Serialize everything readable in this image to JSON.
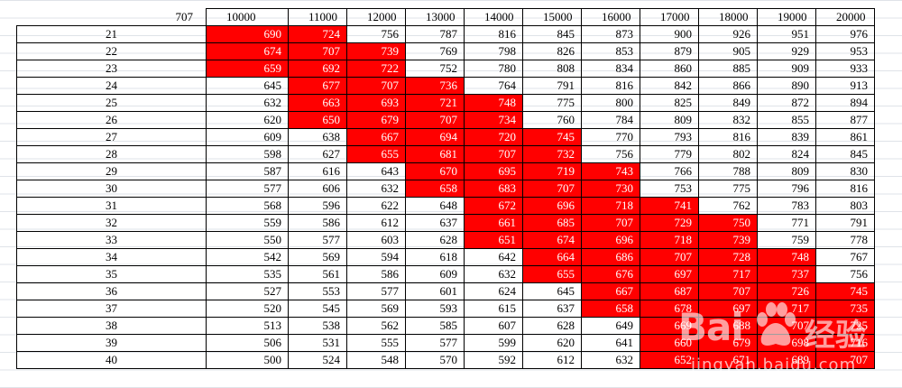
{
  "table": {
    "corner": "707",
    "columns": [
      "10000",
      "11000",
      "12000",
      "13000",
      "14000",
      "15000",
      "16000",
      "17000",
      "18000",
      "19000",
      "20000"
    ],
    "highlight_color": "#ff0000",
    "rows": [
      {
        "label": "21",
        "values": [
          "690",
          "724",
          "756",
          "787",
          "816",
          "845",
          "873",
          "900",
          "926",
          "951",
          "976"
        ],
        "highlighted": [
          0,
          1
        ]
      },
      {
        "label": "22",
        "values": [
          "674",
          "707",
          "739",
          "769",
          "798",
          "826",
          "853",
          "879",
          "905",
          "929",
          "953"
        ],
        "highlighted": [
          0,
          1,
          2
        ]
      },
      {
        "label": "23",
        "values": [
          "659",
          "692",
          "722",
          "752",
          "780",
          "808",
          "834",
          "860",
          "885",
          "909",
          "933"
        ],
        "highlighted": [
          0,
          1,
          2
        ]
      },
      {
        "label": "24",
        "values": [
          "645",
          "677",
          "707",
          "736",
          "764",
          "791",
          "816",
          "842",
          "866",
          "890",
          "913"
        ],
        "highlighted": [
          1,
          2,
          3
        ]
      },
      {
        "label": "25",
        "values": [
          "632",
          "663",
          "693",
          "721",
          "748",
          "775",
          "800",
          "825",
          "849",
          "872",
          "894"
        ],
        "highlighted": [
          1,
          2,
          3,
          4
        ]
      },
      {
        "label": "26",
        "values": [
          "620",
          "650",
          "679",
          "707",
          "734",
          "760",
          "784",
          "809",
          "832",
          "855",
          "877"
        ],
        "highlighted": [
          1,
          2,
          3,
          4
        ]
      },
      {
        "label": "27",
        "values": [
          "609",
          "638",
          "667",
          "694",
          "720",
          "745",
          "770",
          "793",
          "816",
          "839",
          "861"
        ],
        "highlighted": [
          2,
          3,
          4,
          5
        ]
      },
      {
        "label": "28",
        "values": [
          "598",
          "627",
          "655",
          "681",
          "707",
          "732",
          "756",
          "779",
          "802",
          "824",
          "845"
        ],
        "highlighted": [
          2,
          3,
          4,
          5
        ]
      },
      {
        "label": "29",
        "values": [
          "587",
          "616",
          "643",
          "670",
          "695",
          "719",
          "743",
          "766",
          "788",
          "809",
          "830"
        ],
        "highlighted": [
          3,
          4,
          5,
          6
        ]
      },
      {
        "label": "30",
        "values": [
          "577",
          "606",
          "632",
          "658",
          "683",
          "707",
          "730",
          "753",
          "775",
          "796",
          "816"
        ],
        "highlighted": [
          3,
          4,
          5,
          6
        ]
      },
      {
        "label": "31",
        "values": [
          "568",
          "596",
          "622",
          "648",
          "672",
          "696",
          "718",
          "741",
          "762",
          "783",
          "803"
        ],
        "highlighted": [
          4,
          5,
          6,
          7
        ]
      },
      {
        "label": "32",
        "values": [
          "559",
          "586",
          "612",
          "637",
          "661",
          "685",
          "707",
          "729",
          "750",
          "771",
          "791"
        ],
        "highlighted": [
          4,
          5,
          6,
          7,
          8
        ]
      },
      {
        "label": "33",
        "values": [
          "550",
          "577",
          "603",
          "628",
          "651",
          "674",
          "696",
          "718",
          "739",
          "759",
          "778"
        ],
        "highlighted": [
          4,
          5,
          6,
          7,
          8
        ]
      },
      {
        "label": "34",
        "values": [
          "542",
          "569",
          "594",
          "618",
          "642",
          "664",
          "686",
          "707",
          "728",
          "748",
          "767"
        ],
        "highlighted": [
          5,
          6,
          7,
          8,
          9
        ]
      },
      {
        "label": "35",
        "values": [
          "535",
          "561",
          "586",
          "609",
          "632",
          "655",
          "676",
          "697",
          "717",
          "737",
          "756"
        ],
        "highlighted": [
          5,
          6,
          7,
          8,
          9
        ]
      },
      {
        "label": "36",
        "values": [
          "527",
          "553",
          "577",
          "601",
          "624",
          "645",
          "667",
          "687",
          "707",
          "726",
          "745"
        ],
        "highlighted": [
          6,
          7,
          8,
          9,
          10
        ]
      },
      {
        "label": "37",
        "values": [
          "520",
          "545",
          "569",
          "593",
          "615",
          "637",
          "658",
          "678",
          "697",
          "717",
          "735"
        ],
        "highlighted": [
          6,
          7,
          8,
          9,
          10
        ]
      },
      {
        "label": "38",
        "values": [
          "513",
          "538",
          "562",
          "585",
          "607",
          "628",
          "649",
          "669",
          "688",
          "707",
          "725"
        ],
        "highlighted": [
          7,
          8,
          9,
          10
        ]
      },
      {
        "label": "39",
        "values": [
          "506",
          "531",
          "555",
          "577",
          "599",
          "620",
          "641",
          "660",
          "679",
          "698",
          "716"
        ],
        "highlighted": [
          7,
          8,
          9,
          10
        ]
      },
      {
        "label": "40",
        "values": [
          "500",
          "524",
          "548",
          "570",
          "592",
          "612",
          "632",
          "652",
          "671",
          "689",
          "707"
        ],
        "highlighted": [
          7,
          8,
          9,
          10
        ]
      }
    ]
  },
  "watermark": {
    "logo_text": "Bai",
    "paw_icon": "baidu-paw-icon",
    "cn_text": "经验",
    "url": "jingyan.baidu.com"
  }
}
